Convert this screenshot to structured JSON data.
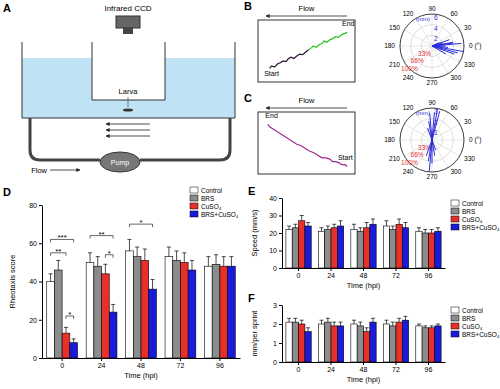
{
  "panel_labels": [
    "A",
    "B",
    "C",
    "D",
    "E",
    "F"
  ],
  "diagram": {
    "camera": "Infrared CCD",
    "larva": "Larva",
    "flow": "Flow",
    "pump": "Pump"
  },
  "chart_data": [
    {
      "type": "line",
      "title": "Flow",
      "xlim": [
        0,
        100
      ],
      "ylim": [
        0,
        100
      ],
      "tick_labels": false,
      "series": [
        {
          "color": "#2a0f33",
          "x": [
            12,
            14,
            17,
            20,
            23,
            26,
            29,
            31,
            34,
            37,
            40,
            43,
            46,
            49,
            52
          ],
          "values": [
            22,
            26,
            24,
            29,
            31,
            34,
            33,
            37,
            40,
            38,
            42,
            45,
            44,
            48,
            52
          ]
        },
        {
          "color": "#22c322",
          "x": [
            52,
            55,
            57,
            60,
            63,
            66,
            68,
            71,
            74,
            77,
            80,
            83,
            86,
            89,
            92
          ],
          "values": [
            52,
            55,
            58,
            56,
            60,
            62,
            66,
            64,
            68,
            70,
            73,
            72,
            76,
            78,
            80
          ]
        }
      ],
      "annotations": [
        {
          "text": "Start",
          "x": 14,
          "y": 10
        },
        {
          "text": "End",
          "x": 93,
          "y": 90
        }
      ]
    },
    {
      "type": "polar",
      "xlim": [
        0,
        360
      ],
      "xticks": [
        {
          "value": 0,
          "label": "0 (°)"
        },
        30,
        60,
        90,
        120,
        150,
        180,
        210,
        240,
        270,
        300,
        330
      ],
      "ylim": [
        0,
        6
      ],
      "yticks": [
        2,
        4,
        6
      ],
      "ylabel": "(mm)",
      "y2lim": [
        0,
        100
      ],
      "y2ticks": [
        {
          "value": 33,
          "label": "33%"
        },
        {
          "value": 66,
          "label": "66%"
        },
        {
          "value": 100,
          "label": "100%"
        }
      ],
      "grid": true,
      "series": [
        {
          "color": "#2b2bd9",
          "x": [
            350,
            5,
            10,
            355,
            340,
            15,
            20,
            345,
            0,
            330,
            25,
            8
          ],
          "values": [
            6,
            5.5,
            4,
            3,
            4.5,
            2,
            3.5,
            5,
            2.5,
            3,
            1.5,
            4
          ]
        }
      ]
    },
    {
      "type": "line",
      "title": "Flow",
      "xlim": [
        0,
        100
      ],
      "ylim": [
        0,
        100
      ],
      "tick_labels": false,
      "series": [
        {
          "color": "#9c2a8c",
          "x": [
            92,
            90,
            86,
            84,
            80,
            77,
            74,
            70,
            66,
            62,
            58,
            55,
            52,
            48,
            44,
            40,
            36,
            32,
            28,
            24,
            20,
            16,
            12,
            10
          ],
          "values": [
            12,
            15,
            15,
            18,
            20,
            20,
            24,
            26,
            26,
            30,
            34,
            36,
            38,
            42,
            46,
            48,
            52,
            56,
            60,
            64,
            68,
            72,
            76,
            80
          ]
        }
      ],
      "annotations": [
        {
          "text": "Start",
          "x": 90,
          "y": 22
        },
        {
          "text": "End",
          "x": 14,
          "y": 90
        }
      ]
    },
    {
      "type": "polar",
      "xlim": [
        0,
        360
      ],
      "xticks": [
        {
          "value": 0,
          "label": "0 (°)"
        },
        30,
        60,
        90,
        120,
        150,
        180,
        210,
        240,
        270,
        300,
        330
      ],
      "ylim": [
        0,
        3
      ],
      "yticks": [
        1,
        2,
        3
      ],
      "ylabel": "(mm)",
      "y2lim": [
        0,
        100
      ],
      "y2ticks": [
        {
          "value": 33,
          "label": "33%"
        },
        {
          "value": 66,
          "label": "66%"
        },
        {
          "value": 100,
          "label": "100%"
        }
      ],
      "grid": true,
      "series": [
        {
          "color": "#2b2bd9",
          "x": [
            80,
            95,
            100,
            265,
            270,
            280,
            75,
            110,
            260,
            290,
            85,
            250
          ],
          "values": [
            3,
            2.5,
            1.8,
            3,
            2.2,
            1.5,
            2.8,
            1.2,
            2,
            1,
            2.6,
            1.6
          ]
        }
      ]
    },
    {
      "type": "bar",
      "ylabel": "Rheotaxis score",
      "xlabel": "Time (hpi)",
      "categories": [
        "0",
        "24",
        "48",
        "72",
        "96"
      ],
      "ylim": [
        0,
        80
      ],
      "yticks": [
        0,
        20,
        40,
        60,
        80
      ],
      "legend": "top-right",
      "series": [
        {
          "name": "Control",
          "color": "#ffffff",
          "values": [
            40,
            50,
            56,
            53,
            48
          ],
          "errors": [
            4,
            5,
            6,
            5,
            5
          ]
        },
        {
          "name": "BRS",
          "color": "#8c8c8c",
          "values": [
            46,
            48,
            53,
            51,
            49
          ],
          "errors": [
            5,
            5,
            5,
            5,
            5
          ]
        },
        {
          "name": "CuSO₄",
          "color": "#e8302a",
          "values": [
            13,
            44,
            51,
            50,
            48
          ],
          "errors": [
            3,
            5,
            6,
            5,
            5
          ]
        },
        {
          "name": "BRS+CuSO₄",
          "color": "#1a1adb",
          "values": [
            8,
            24,
            36,
            46,
            48
          ],
          "errors": [
            2,
            4,
            5,
            5,
            5
          ]
        }
      ],
      "annotations": [
        {
          "text": "***",
          "category": 0,
          "from": 0,
          "to": 3,
          "y": 62
        },
        {
          "text": "**",
          "category": 0,
          "from": 0,
          "to": 2,
          "y": 55
        },
        {
          "text": "*",
          "category": 0,
          "from": 2,
          "to": 3,
          "y": 22
        },
        {
          "text": "**",
          "category": 1,
          "from": 0,
          "to": 3,
          "y": 64
        },
        {
          "text": "*",
          "category": 1,
          "from": 2,
          "to": 3,
          "y": 54
        },
        {
          "text": "*",
          "category": 2,
          "from": 0,
          "to": 3,
          "y": 70
        }
      ]
    },
    {
      "type": "bar",
      "ylabel": "Speed (mm/s)",
      "xlabel": "Time (hpi)",
      "categories": [
        "0",
        "24",
        "48",
        "72",
        "96"
      ],
      "ylim": [
        0,
        40
      ],
      "yticks": [
        0,
        10,
        20,
        30,
        40
      ],
      "legend": "right",
      "series": [
        {
          "name": "Control",
          "color": "#ffffff",
          "values": [
            22,
            21,
            22,
            24,
            21
          ],
          "errors": [
            2,
            2,
            3,
            3,
            2
          ]
        },
        {
          "name": "BRS",
          "color": "#8c8c8c",
          "values": [
            23,
            22,
            21,
            22,
            20
          ],
          "errors": [
            2,
            2,
            2,
            2,
            2
          ]
        },
        {
          "name": "CuSO₄",
          "color": "#e8302a",
          "values": [
            27,
            23,
            23,
            25,
            20
          ],
          "errors": [
            3,
            2,
            3,
            3,
            2
          ]
        },
        {
          "name": "BRS+CuSO₄",
          "color": "#1a1adb",
          "values": [
            24,
            24,
            25,
            23,
            21
          ],
          "errors": [
            2,
            3,
            3,
            3,
            2
          ]
        }
      ]
    },
    {
      "type": "bar",
      "ylabel": "mm/per sprint",
      "xlabel": "Time (hpi)",
      "categories": [
        "0",
        "24",
        "48",
        "72",
        "96"
      ],
      "ylim": [
        0,
        3
      ],
      "yticks": [
        0,
        1,
        2,
        3
      ],
      "legend": "right",
      "series": [
        {
          "name": "Control",
          "color": "#ffffff",
          "values": [
            2.1,
            2.0,
            2.0,
            2.0,
            1.9
          ],
          "errors": [
            0.2,
            0.2,
            0.2,
            0.2,
            0.1
          ]
        },
        {
          "name": "BRS",
          "color": "#8c8c8c",
          "values": [
            2.1,
            2.1,
            1.9,
            1.9,
            1.8
          ],
          "errors": [
            0.2,
            0.2,
            0.2,
            0.2,
            0.1
          ]
        },
        {
          "name": "CuSO₄",
          "color": "#e8302a",
          "values": [
            2.0,
            1.9,
            1.6,
            2.1,
            1.8
          ],
          "errors": [
            0.2,
            0.2,
            0.2,
            0.2,
            0.1
          ]
        },
        {
          "name": "BRS+CuSO₄",
          "color": "#1a1adb",
          "values": [
            1.6,
            1.9,
            2.1,
            2.2,
            1.9
          ],
          "errors": [
            0.2,
            0.2,
            0.2,
            0.2,
            0.1
          ]
        }
      ]
    }
  ]
}
